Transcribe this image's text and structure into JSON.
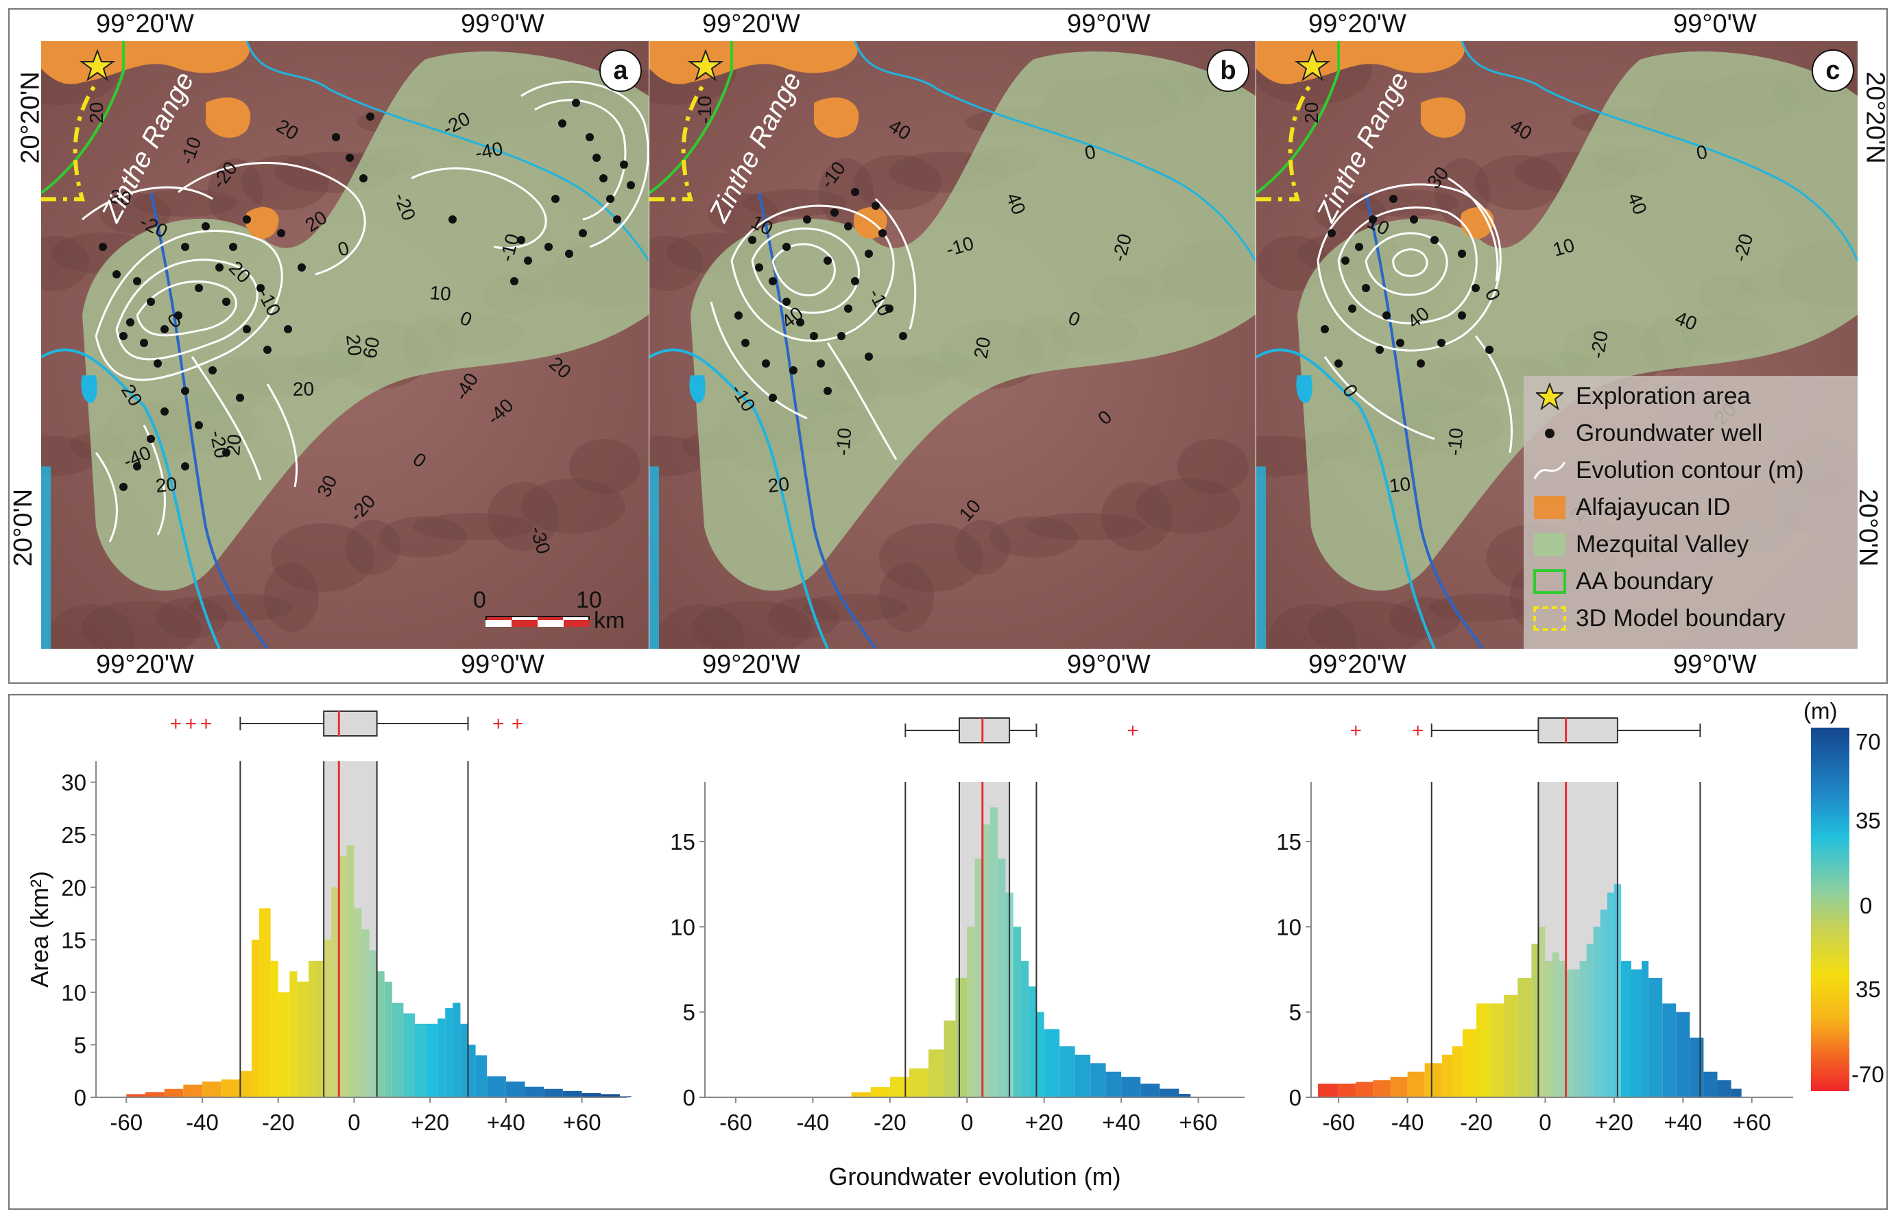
{
  "maps": {
    "top_longitudes": [
      "99°20'W",
      "99°0'W",
      "99°20'W",
      "99°0'W",
      "99°20'W",
      "99°0'W"
    ],
    "bottom_longitudes": [
      "99°20'W",
      "99°0'W",
      "99°20'W",
      "99°0'W",
      "99°20'W",
      "99°0'W"
    ],
    "left_latitudes": [
      "20°20'N",
      "20°0'N"
    ],
    "right_latitudes": [
      "20°20'N",
      "20°0'N"
    ],
    "panel_letters": [
      "a",
      "b",
      "c"
    ],
    "range_label": "Zinthe Range",
    "scale_bar": {
      "start": "0",
      "end": "10",
      "unit": "km"
    },
    "contour_labels": {
      "a": [
        "20",
        "-20",
        "0",
        "0",
        "20",
        "20",
        "-20",
        "-40",
        "-20",
        "-10",
        "60",
        "-40",
        "20",
        "20",
        "-20",
        "-10",
        "0",
        "20",
        "0",
        "-30",
        "-10",
        "20",
        "10",
        "20",
        "-20",
        "30",
        "-20",
        "30",
        "20",
        "20",
        "-40",
        "-40"
      ],
      "b": [
        "-10",
        "-10",
        "-10",
        "0",
        "-10",
        "-10",
        "10",
        "0",
        "10",
        "-10",
        "20",
        "0",
        "20",
        "40",
        "40",
        "-20",
        "40"
      ],
      "c": [
        "20",
        "30",
        "10",
        "40",
        "0",
        "-10",
        "20",
        "0",
        "10",
        "0",
        "-20",
        "20",
        "10",
        "40",
        "40",
        "-20",
        "40"
      ]
    },
    "colors": {
      "alfajayucan": "#e8913a",
      "mezquital": "#9fbd8a",
      "aa_boundary": "#2ecc2e",
      "model_boundary": "#f4e21a",
      "river": "#1fb5e0",
      "terrain": "#8a5a55"
    }
  },
  "legend": {
    "items": [
      {
        "icon": "star-icon",
        "label": "Exploration area"
      },
      {
        "icon": "dot-icon",
        "label": "Groundwater well"
      },
      {
        "icon": "contour-line-icon",
        "label": "Evolution contour (m)"
      },
      {
        "icon": "orange-swatch",
        "label": "Alfajayucan ID"
      },
      {
        "icon": "green-swatch",
        "label": "Mezquital Valley"
      },
      {
        "icon": "green-outline-swatch",
        "label": "AA boundary"
      },
      {
        "icon": "yellow-dashed-swatch",
        "label": "3D Model boundary"
      }
    ]
  },
  "chart_data": [
    {
      "type": "bar",
      "panel": "a",
      "ylabel": "Area (km²)",
      "xlabel": "",
      "x_ticks": [
        "-60",
        "-40",
        "-20",
        "0",
        "+20",
        "+40",
        "+60"
      ],
      "y_ticks": [
        "0",
        "5",
        "10",
        "15",
        "20",
        "25",
        "30"
      ],
      "xlim": [
        -68,
        72
      ],
      "ylim": [
        0,
        32
      ],
      "x": [
        -60,
        -55,
        -50,
        -45,
        -40,
        -35,
        -30,
        -27,
        -25,
        -22,
        -20,
        -17,
        -15,
        -12,
        -10,
        -8,
        -6,
        -4,
        -2,
        0,
        2,
        4,
        6,
        8,
        10,
        13,
        16,
        19,
        22,
        24,
        26,
        28,
        30,
        32,
        35,
        40,
        45,
        50,
        55,
        60,
        65,
        70
      ],
      "values": [
        0.3,
        0.5,
        0.8,
        1.2,
        1.5,
        1.7,
        2.5,
        15,
        18,
        13,
        10,
        12,
        11,
        13,
        13,
        15,
        20,
        23,
        24,
        18,
        16,
        14,
        12,
        11,
        9,
        8,
        7,
        7,
        7.5,
        8.5,
        9,
        7,
        5,
        4,
        2,
        1.5,
        1,
        0.8,
        0.6,
        0.4,
        0.3,
        0.1
      ],
      "boxplot": {
        "whisker_low": -30,
        "q1": -8,
        "median": -4,
        "q3": 6,
        "whisker_high": 30,
        "outliers": [
          -47,
          -43,
          -39,
          38,
          43
        ]
      }
    },
    {
      "type": "bar",
      "panel": "b",
      "ylabel": "",
      "xlabel": "Groundwater evolution (m)",
      "x_ticks": [
        "-60",
        "-40",
        "-20",
        "0",
        "+20",
        "+40",
        "+60"
      ],
      "y_ticks": [
        "0",
        "5",
        "10",
        "15"
      ],
      "xlim": [
        -68,
        72
      ],
      "ylim": [
        0,
        18.5
      ],
      "x": [
        -30,
        -25,
        -20,
        -15,
        -10,
        -6,
        -3,
        0,
        2,
        4,
        6,
        8,
        10,
        12,
        14,
        16,
        18,
        20,
        24,
        28,
        32,
        36,
        40,
        45,
        50,
        55
      ],
      "values": [
        0.3,
        0.6,
        1.2,
        1.7,
        2.8,
        4.5,
        7,
        10,
        14,
        16,
        17,
        14,
        12,
        10,
        8,
        6.5,
        5,
        4,
        3,
        2.5,
        2,
        1.5,
        1.2,
        0.8,
        0.5,
        0.2
      ],
      "boxplot": {
        "whisker_low": -16,
        "q1": -2,
        "median": 4,
        "q3": 11,
        "whisker_high": 18,
        "outliers": [
          43
        ]
      }
    },
    {
      "type": "bar",
      "panel": "c",
      "ylabel": "",
      "xlabel": "",
      "x_ticks": [
        "-60",
        "-40",
        "-20",
        "0",
        "+20",
        "+40",
        "+60"
      ],
      "y_ticks": [
        "0",
        "5",
        "10",
        "15"
      ],
      "xlim": [
        -68,
        72
      ],
      "ylim": [
        0,
        18.5
      ],
      "x": [
        -66,
        -60,
        -55,
        -50,
        -45,
        -40,
        -35,
        -30,
        -27,
        -24,
        -20,
        -16,
        -12,
        -8,
        -4,
        -2,
        0,
        2,
        4,
        6,
        8,
        10,
        12,
        14,
        16,
        18,
        20,
        22,
        25,
        28,
        30,
        34,
        38,
        42,
        46,
        50,
        54
      ],
      "values": [
        0.8,
        0.8,
        0.9,
        1,
        1.2,
        1.5,
        2,
        2.5,
        3,
        4,
        5.5,
        5.5,
        6,
        7,
        9,
        10,
        8,
        8.5,
        8,
        7.5,
        7.5,
        8,
        9,
        10,
        11,
        12,
        12.5,
        8,
        7.5,
        8,
        7,
        5.5,
        5,
        3.5,
        1.5,
        1,
        0.5
      ],
      "boxplot": {
        "whisker_low": -33,
        "q1": -2,
        "median": 6,
        "q3": 21,
        "whisker_high": 45,
        "outliers": [
          -55,
          -37
        ]
      }
    }
  ],
  "colorbar": {
    "unit": "(m)",
    "labels": [
      "70",
      "35",
      "0",
      "35",
      "-70"
    ]
  }
}
